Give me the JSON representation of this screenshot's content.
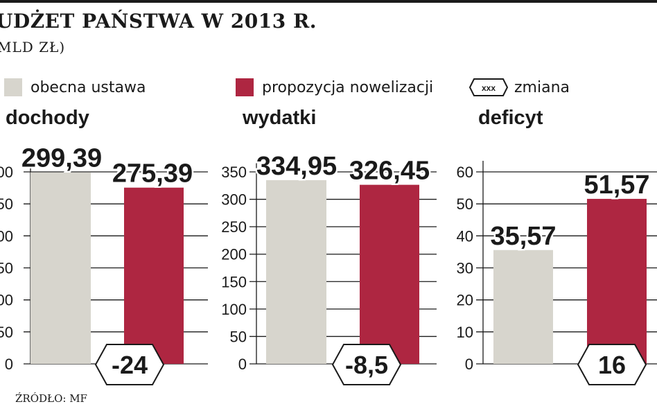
{
  "header": {
    "title": "UDŻET PAŃSTWA W 2013 R.",
    "subtitle": "MLD ZŁ)"
  },
  "legend": {
    "current_label": "obecna ustawa",
    "proposal_label": "propozycja nowelizacji",
    "change_icon_text": "xxx",
    "change_label": "zmiana"
  },
  "source": "ŹRÓDŁO: MF",
  "colors": {
    "current": "#d7d5cd",
    "proposal": "#ae2641",
    "text": "#1a1a1a",
    "grid": "#1a1a1a"
  },
  "chart_data": [
    {
      "type": "bar",
      "title": "dochody",
      "categories": [
        "obecna ustawa",
        "propozycja nowelizacji"
      ],
      "values": [
        299.39,
        275.39
      ],
      "value_labels": [
        "299,39",
        "275,39"
      ],
      "change": "-24",
      "ylim": [
        0,
        300
      ],
      "ytick_labels": [
        "0",
        "50",
        "00",
        "50",
        "00",
        "50",
        "00"
      ],
      "grid": true
    },
    {
      "type": "bar",
      "title": "wydatki",
      "categories": [
        "obecna ustawa",
        "propozycja nowelizacji"
      ],
      "values": [
        334.95,
        326.45
      ],
      "value_labels": [
        "334,95",
        "326,45"
      ],
      "change": "-8,5",
      "ylim": [
        0,
        350
      ],
      "ytick_labels": [
        "0",
        "50",
        "100",
        "150",
        "200",
        "250",
        "300",
        "350"
      ],
      "grid": true
    },
    {
      "type": "bar",
      "title": "deficyt",
      "categories": [
        "obecna ustawa",
        "propozycja nowelizacji"
      ],
      "values": [
        35.57,
        51.57
      ],
      "value_labels": [
        "35,57",
        "51,57"
      ],
      "change": "16",
      "ylim": [
        0,
        60
      ],
      "ytick_labels": [
        "0",
        "10",
        "20",
        "30",
        "40",
        "50",
        "60"
      ],
      "grid": true
    }
  ]
}
